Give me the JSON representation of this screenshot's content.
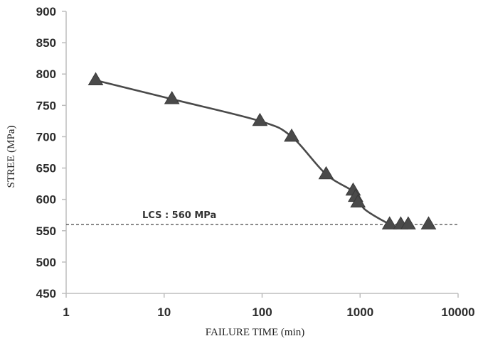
{
  "chart_data": {
    "type": "scatter",
    "xlabel": "FAILURE TIME (min)",
    "ylabel": "STREE (MPa)",
    "x_scale": "log",
    "xlim": [
      1,
      10000
    ],
    "ylim": [
      450,
      900
    ],
    "x_ticks": [
      "1",
      "10",
      "100",
      "1000",
      "10000"
    ],
    "y_ticks": [
      "450",
      "500",
      "550",
      "600",
      "650",
      "700",
      "750",
      "800",
      "850",
      "900"
    ],
    "grid": false,
    "legend": "none",
    "series": [
      {
        "marker": "triangle",
        "color": "#4a4a4a",
        "points": [
          {
            "x": 2,
            "y": 790
          },
          {
            "x": 12,
            "y": 760
          },
          {
            "x": 95,
            "y": 725
          },
          {
            "x": 200,
            "y": 700
          },
          {
            "x": 450,
            "y": 640
          },
          {
            "x": 850,
            "y": 614
          },
          {
            "x": 900,
            "y": 604
          },
          {
            "x": 950,
            "y": 595
          },
          {
            "x": 2000,
            "y": 560
          },
          {
            "x": 2600,
            "y": 560
          },
          {
            "x": 3100,
            "y": 560
          },
          {
            "x": 5000,
            "y": 560
          }
        ],
        "fit_line": [
          {
            "x": 2,
            "y": 790
          },
          {
            "x": 12,
            "y": 760
          },
          {
            "x": 95,
            "y": 725
          },
          {
            "x": 200,
            "y": 700
          },
          {
            "x": 450,
            "y": 640
          },
          {
            "x": 900,
            "y": 610
          },
          {
            "x": 1100,
            "y": 585
          },
          {
            "x": 2000,
            "y": 560
          }
        ]
      }
    ],
    "reference_line": {
      "y": 560,
      "label": "LCS : 560 MPa",
      "style": "dashed",
      "color": "#555555"
    },
    "colors": {
      "axis": "#bdbdbd",
      "line": "#4a4a4a",
      "marker": "#4a4a4a"
    }
  }
}
